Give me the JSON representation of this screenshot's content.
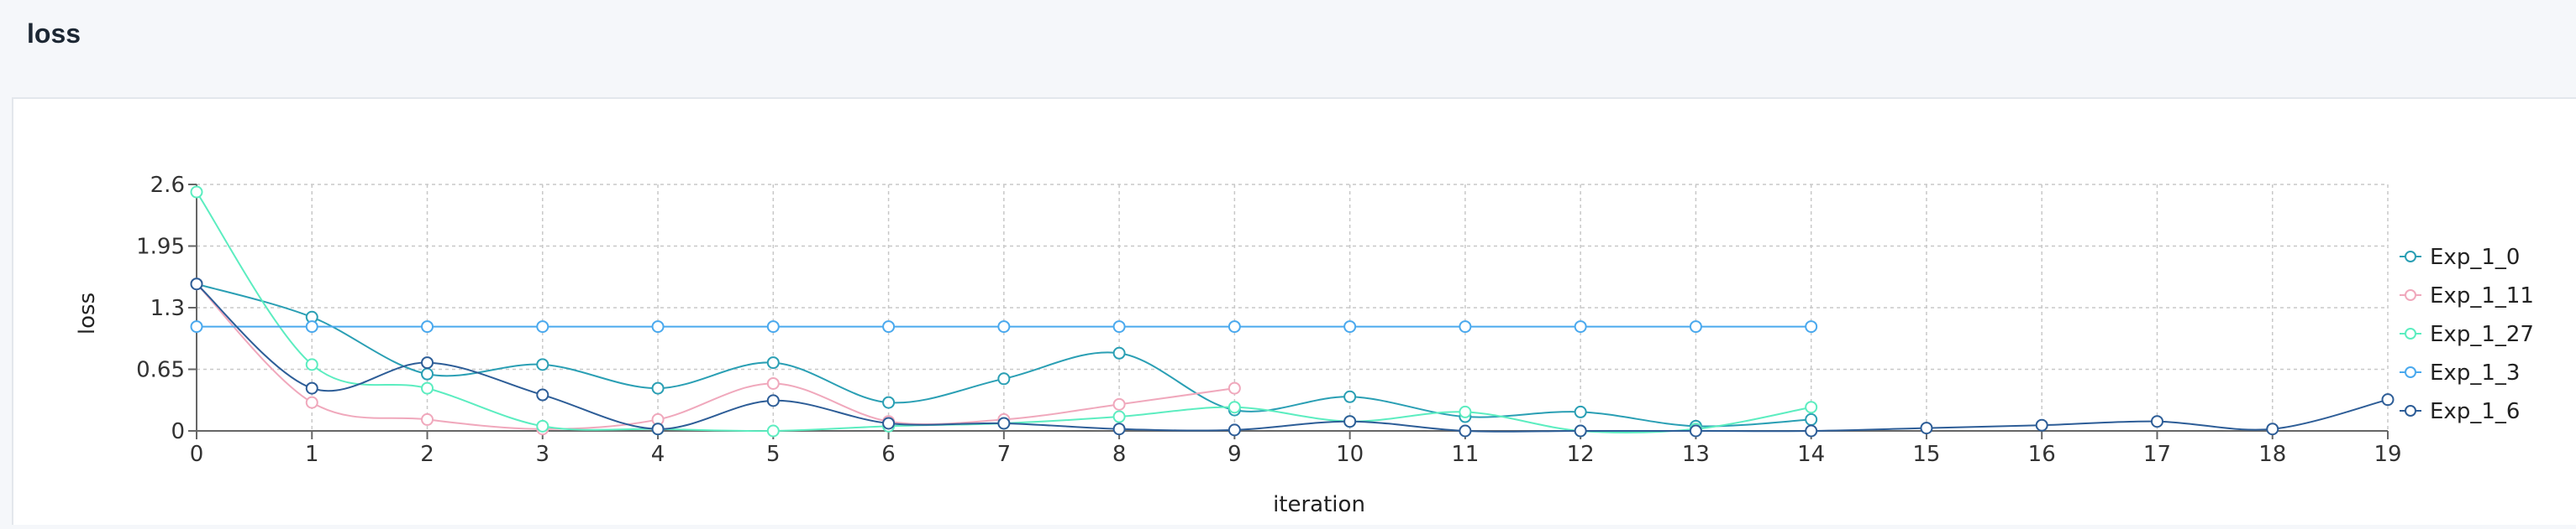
{
  "page": {
    "title": "loss"
  },
  "chart_data": {
    "type": "line",
    "title": "",
    "xlabel": "iteration",
    "ylabel": "loss",
    "xlim": [
      0,
      19
    ],
    "ylim": [
      0,
      2.6
    ],
    "x_ticks": [
      0,
      1,
      2,
      3,
      4,
      5,
      6,
      7,
      8,
      9,
      10,
      11,
      12,
      13,
      14,
      15,
      16,
      17,
      18,
      19
    ],
    "y_ticks": [
      0,
      0.65,
      1.3,
      1.95,
      2.6
    ],
    "y_tick_labels": [
      "0",
      "0.65",
      "1.3",
      "1.95",
      "2.6"
    ],
    "grid": true,
    "legend_position": "right",
    "series": [
      {
        "name": "Exp_1_0",
        "color": "#2a9fb4",
        "x": [
          0,
          1,
          2,
          3,
          4,
          5,
          6,
          7,
          8,
          9,
          10,
          11,
          12,
          13,
          14
        ],
        "y": [
          1.55,
          1.2,
          0.6,
          0.7,
          0.45,
          0.72,
          0.3,
          0.55,
          0.82,
          0.22,
          0.36,
          0.15,
          0.2,
          0.05,
          0.12
        ]
      },
      {
        "name": "Exp_1_11",
        "color": "#f0a8bc",
        "x": [
          0,
          1,
          2,
          3,
          4,
          5,
          6,
          7,
          8,
          9
        ],
        "y": [
          1.55,
          0.3,
          0.12,
          0.02,
          0.12,
          0.5,
          0.1,
          0.12,
          0.28,
          0.45
        ]
      },
      {
        "name": "Exp_1_27",
        "color": "#5cedc0",
        "x": [
          0,
          1,
          2,
          3,
          4,
          5,
          6,
          7,
          8,
          9,
          10,
          11,
          12,
          13,
          14
        ],
        "y": [
          2.52,
          0.7,
          0.45,
          0.05,
          0.02,
          0.0,
          0.05,
          0.08,
          0.15,
          0.25,
          0.1,
          0.2,
          0.0,
          0.02,
          0.25
        ]
      },
      {
        "name": "Exp_1_3",
        "color": "#4aa9ee",
        "x": [
          0,
          1,
          2,
          3,
          4,
          5,
          6,
          7,
          8,
          9,
          10,
          11,
          12,
          13,
          14
        ],
        "y": [
          1.1,
          1.1,
          1.1,
          1.1,
          1.1,
          1.1,
          1.1,
          1.1,
          1.1,
          1.1,
          1.1,
          1.1,
          1.1,
          1.1,
          1.1
        ]
      },
      {
        "name": "Exp_1_6",
        "color": "#2d5d97",
        "x": [
          0,
          1,
          2,
          3,
          4,
          5,
          6,
          7,
          8,
          9,
          10,
          11,
          12,
          13,
          14,
          15,
          16,
          17,
          18,
          19
        ],
        "y": [
          1.55,
          0.45,
          0.72,
          0.38,
          0.02,
          0.32,
          0.08,
          0.08,
          0.02,
          0.01,
          0.1,
          0.0,
          0.0,
          0.0,
          0.0,
          0.03,
          0.06,
          0.1,
          0.02,
          0.33
        ]
      }
    ]
  }
}
